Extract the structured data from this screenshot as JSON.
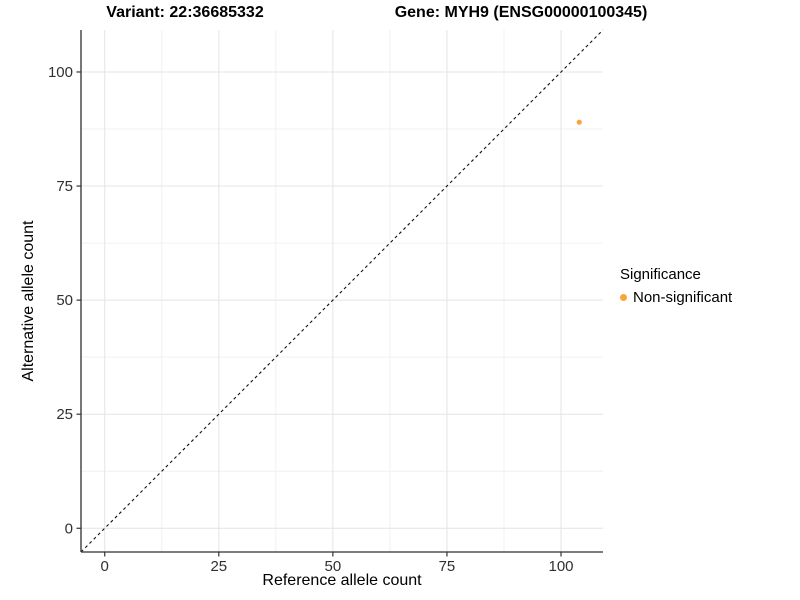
{
  "chart_data": {
    "type": "scatter",
    "titles": {
      "left": "Variant: 22:36685332",
      "right": "Gene: MYH9 (ENSG00000100345)"
    },
    "xlabel": "Reference allele count",
    "ylabel": "Alternative allele count",
    "xlim": [
      -5.2,
      109.2
    ],
    "ylim": [
      -5.2,
      109.2
    ],
    "x_major_ticks": [
      0,
      25,
      50,
      75,
      100
    ],
    "y_major_ticks": [
      0,
      25,
      50,
      75,
      100
    ],
    "x_minor_ticks": [
      12.5,
      37.5,
      62.5,
      87.5
    ],
    "y_minor_ticks": [
      12.5,
      37.5,
      62.5,
      87.5
    ],
    "grid": {
      "major_color": "#e4e4e4",
      "minor_color": "#f0f0f0"
    },
    "axis": {
      "line_color": "#2e2e2e",
      "tick_color": "#333333",
      "tick_label_color": "#303030",
      "tick_label_size": 15
    },
    "identity_line": {
      "style": "dashed",
      "color": "#111111",
      "from": [
        -5.2,
        -5.2
      ],
      "to": [
        109.2,
        109.2
      ],
      "description": "y = x identity line"
    },
    "series": [
      {
        "name": "Non-significant",
        "color": "#faa43a",
        "point_radius": 2.6,
        "points": [
          {
            "x": 104,
            "y": 89
          }
        ]
      }
    ],
    "legend": {
      "title": "Significance",
      "position": "right",
      "entries": [
        {
          "label": "Non-significant",
          "color": "#faa43a"
        }
      ]
    }
  }
}
